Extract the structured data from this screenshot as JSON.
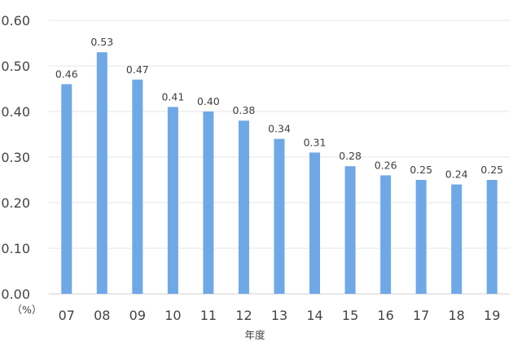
{
  "chart_data": {
    "type": "bar",
    "categories": [
      "07",
      "08",
      "09",
      "10",
      "11",
      "12",
      "13",
      "14",
      "15",
      "16",
      "17",
      "18",
      "19"
    ],
    "values": [
      0.46,
      0.53,
      0.47,
      0.41,
      0.4,
      0.38,
      0.34,
      0.31,
      0.28,
      0.26,
      0.25,
      0.24,
      0.25
    ],
    "value_labels": [
      "0.46",
      "0.53",
      "0.47",
      "0.41",
      "0.40",
      "0.38",
      "0.34",
      "0.31",
      "0.28",
      "0.26",
      "0.25",
      "0.24",
      "0.25"
    ],
    "title": "",
    "xlabel": "年度",
    "ylabel": "",
    "y_unit_label": "（%）",
    "ylim": [
      0,
      0.6
    ],
    "yticks": [
      "0.00",
      "0.10",
      "0.20",
      "0.30",
      "0.40",
      "0.50",
      "0.60"
    ],
    "ytick_values": [
      0,
      0.1,
      0.2,
      0.3,
      0.4,
      0.5,
      0.6
    ],
    "grid": true,
    "legend": "none",
    "bar_color": "#6fa8e6"
  }
}
